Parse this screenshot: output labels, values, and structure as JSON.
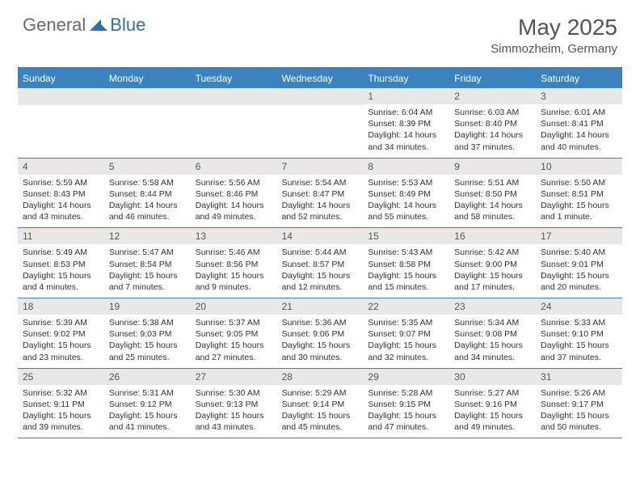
{
  "logo": {
    "general": "General",
    "blue": "Blue"
  },
  "title": "May 2025",
  "location": "Simmozheim, Germany",
  "colors": {
    "header_bg": "#3b83c0",
    "border": "#3b7fb5",
    "daynum_bg": "#e8e8e8",
    "text": "#333333",
    "title_text": "#555555"
  },
  "weekdays": [
    "Sunday",
    "Monday",
    "Tuesday",
    "Wednesday",
    "Thursday",
    "Friday",
    "Saturday"
  ],
  "weeks": [
    [
      {
        "n": "",
        "sr": "",
        "ss": "",
        "dl": ""
      },
      {
        "n": "",
        "sr": "",
        "ss": "",
        "dl": ""
      },
      {
        "n": "",
        "sr": "",
        "ss": "",
        "dl": ""
      },
      {
        "n": "",
        "sr": "",
        "ss": "",
        "dl": ""
      },
      {
        "n": "1",
        "sr": "Sunrise: 6:04 AM",
        "ss": "Sunset: 8:39 PM",
        "dl": "Daylight: 14 hours and 34 minutes."
      },
      {
        "n": "2",
        "sr": "Sunrise: 6:03 AM",
        "ss": "Sunset: 8:40 PM",
        "dl": "Daylight: 14 hours and 37 minutes."
      },
      {
        "n": "3",
        "sr": "Sunrise: 6:01 AM",
        "ss": "Sunset: 8:41 PM",
        "dl": "Daylight: 14 hours and 40 minutes."
      }
    ],
    [
      {
        "n": "4",
        "sr": "Sunrise: 5:59 AM",
        "ss": "Sunset: 8:43 PM",
        "dl": "Daylight: 14 hours and 43 minutes."
      },
      {
        "n": "5",
        "sr": "Sunrise: 5:58 AM",
        "ss": "Sunset: 8:44 PM",
        "dl": "Daylight: 14 hours and 46 minutes."
      },
      {
        "n": "6",
        "sr": "Sunrise: 5:56 AM",
        "ss": "Sunset: 8:46 PM",
        "dl": "Daylight: 14 hours and 49 minutes."
      },
      {
        "n": "7",
        "sr": "Sunrise: 5:54 AM",
        "ss": "Sunset: 8:47 PM",
        "dl": "Daylight: 14 hours and 52 minutes."
      },
      {
        "n": "8",
        "sr": "Sunrise: 5:53 AM",
        "ss": "Sunset: 8:49 PM",
        "dl": "Daylight: 14 hours and 55 minutes."
      },
      {
        "n": "9",
        "sr": "Sunrise: 5:51 AM",
        "ss": "Sunset: 8:50 PM",
        "dl": "Daylight: 14 hours and 58 minutes."
      },
      {
        "n": "10",
        "sr": "Sunrise: 5:50 AM",
        "ss": "Sunset: 8:51 PM",
        "dl": "Daylight: 15 hours and 1 minute."
      }
    ],
    [
      {
        "n": "11",
        "sr": "Sunrise: 5:49 AM",
        "ss": "Sunset: 8:53 PM",
        "dl": "Daylight: 15 hours and 4 minutes."
      },
      {
        "n": "12",
        "sr": "Sunrise: 5:47 AM",
        "ss": "Sunset: 8:54 PM",
        "dl": "Daylight: 15 hours and 7 minutes."
      },
      {
        "n": "13",
        "sr": "Sunrise: 5:46 AM",
        "ss": "Sunset: 8:56 PM",
        "dl": "Daylight: 15 hours and 9 minutes."
      },
      {
        "n": "14",
        "sr": "Sunrise: 5:44 AM",
        "ss": "Sunset: 8:57 PM",
        "dl": "Daylight: 15 hours and 12 minutes."
      },
      {
        "n": "15",
        "sr": "Sunrise: 5:43 AM",
        "ss": "Sunset: 8:58 PM",
        "dl": "Daylight: 15 hours and 15 minutes."
      },
      {
        "n": "16",
        "sr": "Sunrise: 5:42 AM",
        "ss": "Sunset: 9:00 PM",
        "dl": "Daylight: 15 hours and 17 minutes."
      },
      {
        "n": "17",
        "sr": "Sunrise: 5:40 AM",
        "ss": "Sunset: 9:01 PM",
        "dl": "Daylight: 15 hours and 20 minutes."
      }
    ],
    [
      {
        "n": "18",
        "sr": "Sunrise: 5:39 AM",
        "ss": "Sunset: 9:02 PM",
        "dl": "Daylight: 15 hours and 23 minutes."
      },
      {
        "n": "19",
        "sr": "Sunrise: 5:38 AM",
        "ss": "Sunset: 9:03 PM",
        "dl": "Daylight: 15 hours and 25 minutes."
      },
      {
        "n": "20",
        "sr": "Sunrise: 5:37 AM",
        "ss": "Sunset: 9:05 PM",
        "dl": "Daylight: 15 hours and 27 minutes."
      },
      {
        "n": "21",
        "sr": "Sunrise: 5:36 AM",
        "ss": "Sunset: 9:06 PM",
        "dl": "Daylight: 15 hours and 30 minutes."
      },
      {
        "n": "22",
        "sr": "Sunrise: 5:35 AM",
        "ss": "Sunset: 9:07 PM",
        "dl": "Daylight: 15 hours and 32 minutes."
      },
      {
        "n": "23",
        "sr": "Sunrise: 5:34 AM",
        "ss": "Sunset: 9:08 PM",
        "dl": "Daylight: 15 hours and 34 minutes."
      },
      {
        "n": "24",
        "sr": "Sunrise: 5:33 AM",
        "ss": "Sunset: 9:10 PM",
        "dl": "Daylight: 15 hours and 37 minutes."
      }
    ],
    [
      {
        "n": "25",
        "sr": "Sunrise: 5:32 AM",
        "ss": "Sunset: 9:11 PM",
        "dl": "Daylight: 15 hours and 39 minutes."
      },
      {
        "n": "26",
        "sr": "Sunrise: 5:31 AM",
        "ss": "Sunset: 9:12 PM",
        "dl": "Daylight: 15 hours and 41 minutes."
      },
      {
        "n": "27",
        "sr": "Sunrise: 5:30 AM",
        "ss": "Sunset: 9:13 PM",
        "dl": "Daylight: 15 hours and 43 minutes."
      },
      {
        "n": "28",
        "sr": "Sunrise: 5:29 AM",
        "ss": "Sunset: 9:14 PM",
        "dl": "Daylight: 15 hours and 45 minutes."
      },
      {
        "n": "29",
        "sr": "Sunrise: 5:28 AM",
        "ss": "Sunset: 9:15 PM",
        "dl": "Daylight: 15 hours and 47 minutes."
      },
      {
        "n": "30",
        "sr": "Sunrise: 5:27 AM",
        "ss": "Sunset: 9:16 PM",
        "dl": "Daylight: 15 hours and 49 minutes."
      },
      {
        "n": "31",
        "sr": "Sunrise: 5:26 AM",
        "ss": "Sunset: 9:17 PM",
        "dl": "Daylight: 15 hours and 50 minutes."
      }
    ]
  ]
}
